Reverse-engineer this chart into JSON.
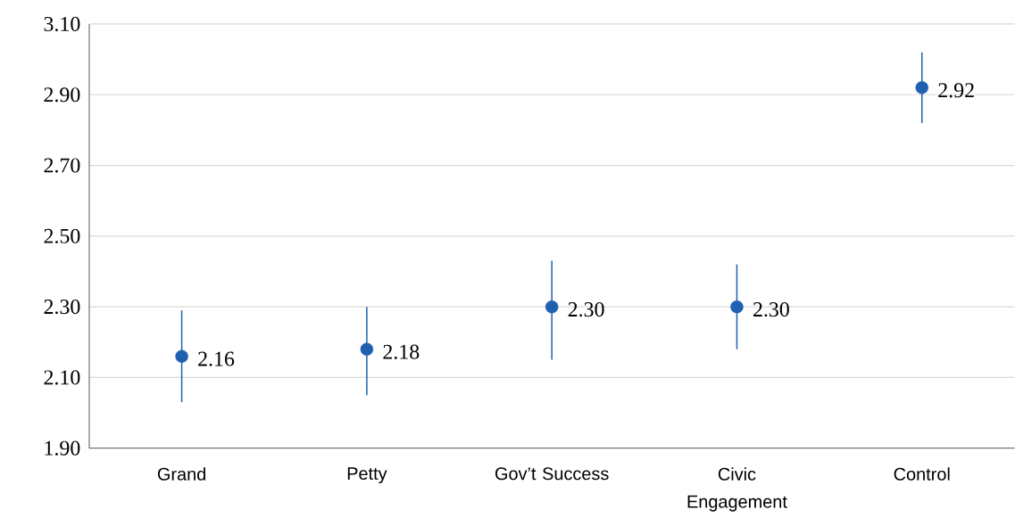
{
  "chart_data": {
    "type": "scatter",
    "categories": [
      "Grand",
      "Petty",
      "Gov’t Success",
      "Civic Engagement",
      "Control"
    ],
    "values": [
      2.16,
      2.18,
      2.3,
      2.3,
      2.92
    ],
    "errors": [
      [
        2.03,
        2.29
      ],
      [
        2.05,
        2.3
      ],
      [
        2.15,
        2.43
      ],
      [
        2.18,
        2.42
      ],
      [
        2.82,
        3.02
      ]
    ],
    "color": "#2060b0",
    "ylim": [
      1.9,
      3.1
    ],
    "yticks": [
      {
        "value": 1.9,
        "label": "1.90"
      },
      {
        "value": 2.1,
        "label": "2.10"
      },
      {
        "value": 2.3,
        "label": "2.30"
      },
      {
        "value": 2.5,
        "label": "2.50"
      },
      {
        "value": 2.7,
        "label": "2.70"
      },
      {
        "value": 2.9,
        "label": "2.90"
      },
      {
        "value": 3.1,
        "label": "3.10"
      }
    ],
    "value_labels": [
      "2.16",
      "2.18",
      "2.30",
      "2.30",
      "2.92"
    ],
    "grid": "y",
    "marker": "circle"
  }
}
